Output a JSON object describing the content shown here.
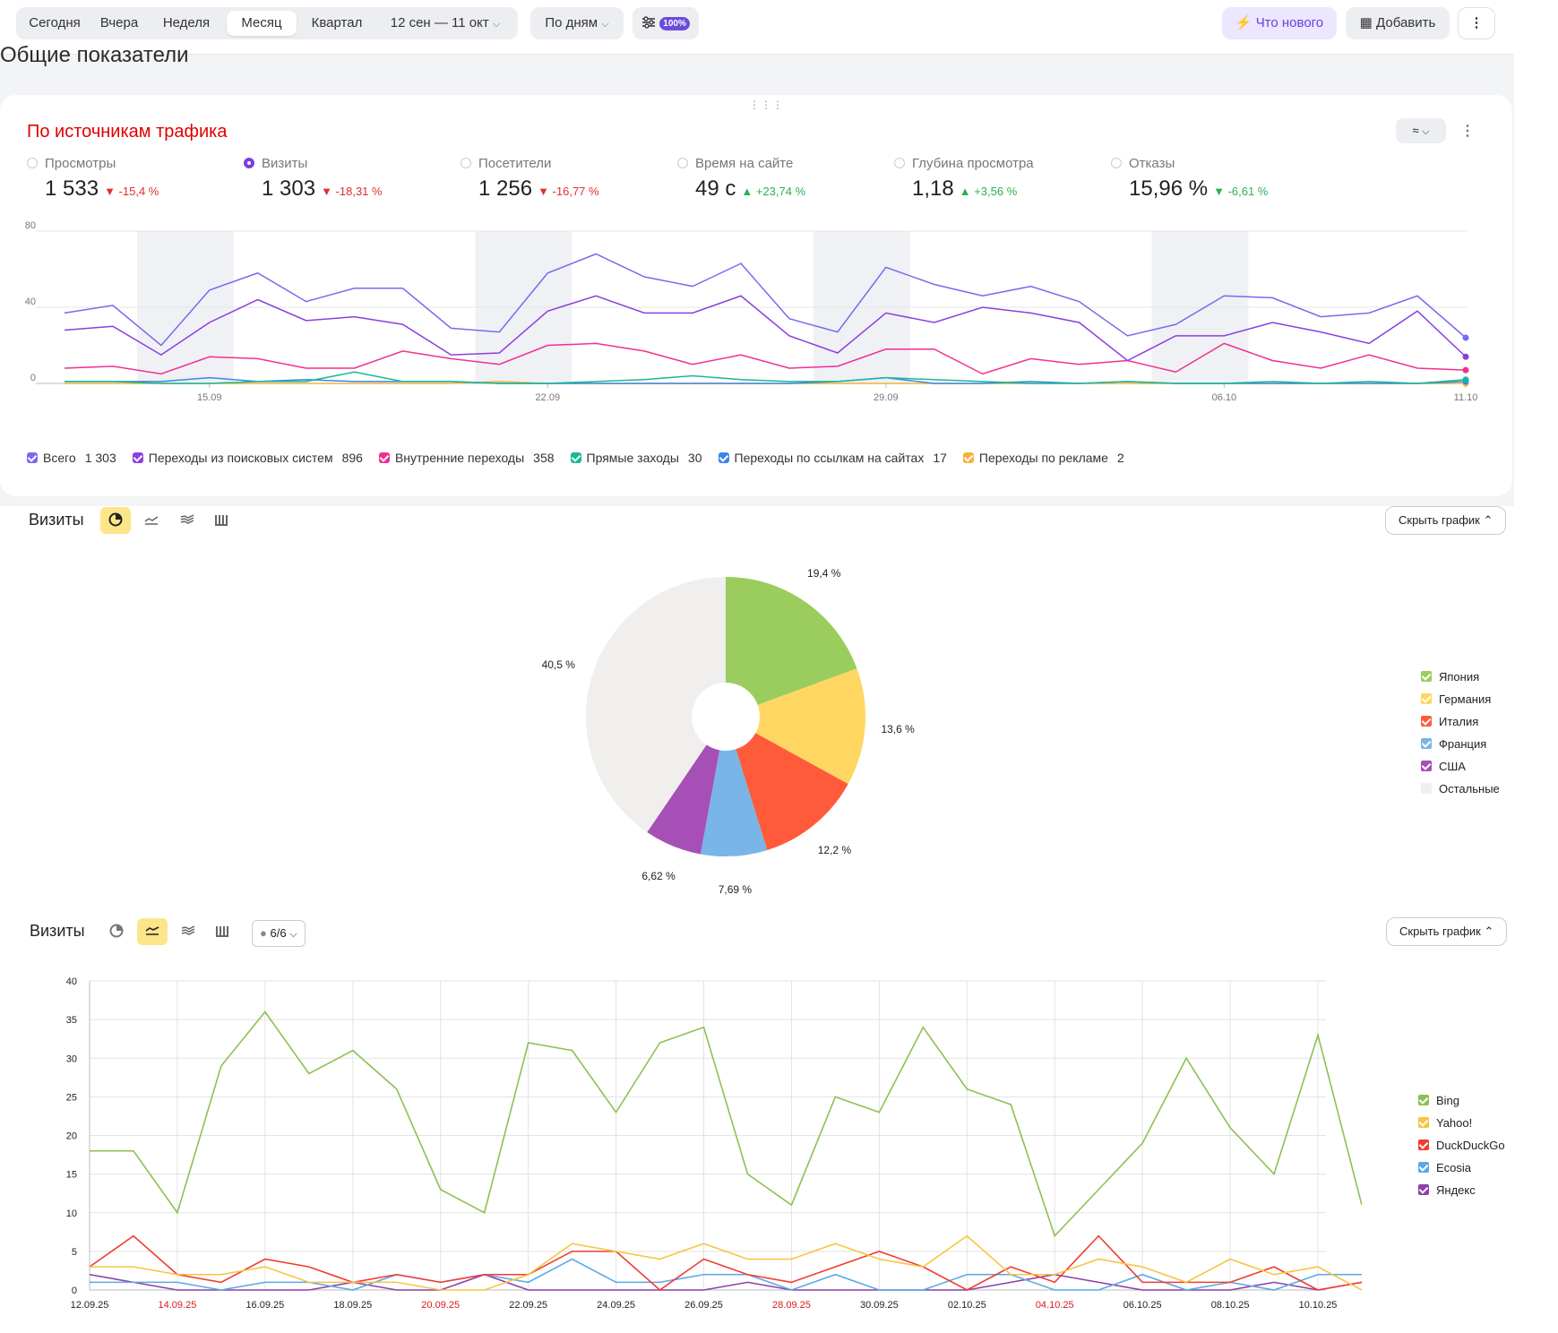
{
  "toolbar": {
    "periods": [
      "Сегодня",
      "Вчера",
      "Неделя",
      "Месяц",
      "Квартал"
    ],
    "active_period": "Месяц",
    "date_range": "12 сен — 11 окт",
    "grouping": "По дням",
    "sample_badge": "100%",
    "whats_new": "Что нового",
    "add": "Добавить"
  },
  "section_title": "Общие показатели",
  "traffic_card": {
    "title": "По источникам трафика",
    "metrics": [
      {
        "label": "Просмотры",
        "value": "1 533",
        "delta": "-15,4 %",
        "trend": "down",
        "selected": false
      },
      {
        "label": "Визиты",
        "value": "1 303",
        "delta": "-18,31 %",
        "trend": "down",
        "selected": true
      },
      {
        "label": "Посетители",
        "value": "1 256",
        "delta": "-16,77 %",
        "trend": "down",
        "selected": false
      },
      {
        "label": "Время на сайте",
        "value": "49 с",
        "delta": "+23,74 %",
        "trend": "up",
        "selected": false
      },
      {
        "label": "Глубина просмотра",
        "value": "1,18",
        "delta": "+3,56 %",
        "trend": "up",
        "selected": false
      },
      {
        "label": "Отказы",
        "value": "15,96 %",
        "delta": "-6,61 %",
        "trend": "down",
        "selected": false
      }
    ],
    "legend": [
      {
        "name": "Всего",
        "value": "1 303",
        "color": "#7b68ee"
      },
      {
        "name": "Переходы из поисковых систем",
        "value": "896",
        "color": "#8a3fe0"
      },
      {
        "name": "Внутренние переходы",
        "value": "358",
        "color": "#f0308f"
      },
      {
        "name": "Прямые заходы",
        "value": "30",
        "color": "#17b897"
      },
      {
        "name": "Переходы по ссылкам на сайтах",
        "value": "17",
        "color": "#3a86e8"
      },
      {
        "name": "Переходы по рекламе",
        "value": "2",
        "color": "#f5b13a"
      }
    ]
  },
  "pie_block": {
    "title": "Визиты",
    "hide_label": "Скрыть график"
  },
  "line_block": {
    "title": "Визиты",
    "series_counter": "6/6",
    "hide_label": "Скрыть график"
  },
  "chart_data": [
    {
      "type": "line",
      "ylim": [
        0,
        80
      ],
      "yticks": [
        "0",
        "40",
        "80"
      ],
      "xticks": [
        "15.09",
        "22.09",
        "29.09",
        "06.10",
        "11.10"
      ],
      "weekend_bands": [
        [
          2,
          3
        ],
        [
          9,
          10
        ],
        [
          16,
          17
        ],
        [
          23,
          24
        ],
        [
          30
        ]
      ],
      "x": [
        "12.09",
        "13.09",
        "14.09",
        "15.09",
        "16.09",
        "17.09",
        "18.09",
        "19.09",
        "20.09",
        "21.09",
        "22.09",
        "23.09",
        "24.09",
        "25.09",
        "26.09",
        "27.09",
        "28.09",
        "29.09",
        "30.09",
        "01.10",
        "02.10",
        "03.10",
        "04.10",
        "05.10",
        "06.10",
        "07.10",
        "08.10",
        "09.10",
        "10.10",
        "11.10"
      ],
      "series": [
        {
          "name": "Всего",
          "color": "#7b68ee",
          "values": [
            37,
            41,
            20,
            49,
            58,
            43,
            50,
            50,
            29,
            27,
            58,
            68,
            56,
            51,
            63,
            34,
            27,
            61,
            52,
            46,
            51,
            43,
            25,
            31,
            46,
            45,
            35,
            37,
            46,
            24
          ]
        },
        {
          "name": "Переходы из поисковых систем",
          "color": "#8a3fe0",
          "values": [
            28,
            30,
            15,
            32,
            44,
            33,
            35,
            31,
            15,
            16,
            38,
            46,
            37,
            37,
            46,
            25,
            16,
            37,
            32,
            40,
            37,
            32,
            12,
            25,
            25,
            32,
            27,
            21,
            38,
            14
          ]
        },
        {
          "name": "Внутренние переходы",
          "color": "#f0308f",
          "values": [
            8,
            9,
            5,
            14,
            13,
            8,
            8,
            17,
            13,
            10,
            20,
            21,
            17,
            10,
            15,
            8,
            9,
            18,
            18,
            5,
            13,
            10,
            12,
            6,
            21,
            12,
            8,
            15,
            8,
            7
          ]
        },
        {
          "name": "Прямые заходы",
          "color": "#17b897",
          "values": [
            1,
            1,
            0,
            0,
            1,
            1,
            6,
            1,
            1,
            0,
            0,
            1,
            2,
            4,
            2,
            1,
            1,
            3,
            2,
            1,
            0,
            0,
            1,
            0,
            0,
            1,
            0,
            1,
            0,
            2
          ]
        },
        {
          "name": "Переходы по ссылкам на сайтах",
          "color": "#3a86e8",
          "values": [
            1,
            1,
            1,
            3,
            1,
            2,
            1,
            1,
            1,
            0,
            0,
            0,
            0,
            0,
            0,
            0,
            1,
            3,
            0,
            0,
            1,
            0,
            1,
            0,
            0,
            0,
            0,
            0,
            0,
            1
          ]
        },
        {
          "name": "Переходы по рекламе",
          "color": "#f5b13a",
          "values": [
            0,
            0,
            0,
            0,
            0,
            0,
            0,
            0,
            0,
            1,
            0,
            0,
            0,
            0,
            0,
            0,
            0,
            0,
            0,
            0,
            0,
            0,
            0,
            0,
            0,
            0,
            0,
            0,
            0,
            0
          ]
        }
      ]
    },
    {
      "type": "pie",
      "slices": [
        {
          "name": "Япония",
          "value": 19.4,
          "label": "19,4 %",
          "color": "#9acd5e"
        },
        {
          "name": "Германия",
          "value": 13.6,
          "label": "13,6 %",
          "color": "#ffd661"
        },
        {
          "name": "Италия",
          "value": 12.2,
          "label": "12,2 %",
          "color": "#ff5b3b"
        },
        {
          "name": "Франция",
          "value": 7.69,
          "label": "7,69 %",
          "color": "#79b5e6"
        },
        {
          "name": "США",
          "value": 6.62,
          "label": "6,62 %",
          "color": "#a64fb6"
        },
        {
          "name": "Остальные",
          "value": 40.5,
          "label": "40,5 %",
          "color": "#f0efed"
        }
      ]
    },
    {
      "type": "line",
      "ylim": [
        0,
        40
      ],
      "yticks": [
        "0",
        "5",
        "10",
        "15",
        "20",
        "25",
        "30",
        "35",
        "40"
      ],
      "x": [
        "12.09.25",
        "13.09.25",
        "14.09.25",
        "15.09.25",
        "16.09.25",
        "17.09.25",
        "18.09.25",
        "19.09.25",
        "20.09.25",
        "21.09.25",
        "22.09.25",
        "23.09.25",
        "24.09.25",
        "25.09.25",
        "26.09.25",
        "27.09.25",
        "28.09.25",
        "29.09.25",
        "30.09.25",
        "01.10.25",
        "02.10.25",
        "03.10.25",
        "04.10.25",
        "05.10.25",
        "06.10.25",
        "07.10.25",
        "08.10.25",
        "09.10.25",
        "10.10.25",
        "11.10.25"
      ],
      "xtick_labels": [
        {
          "i": 0,
          "t": "12.09.25",
          "red": false
        },
        {
          "i": 2,
          "t": "14.09.25",
          "red": true
        },
        {
          "i": 4,
          "t": "16.09.25",
          "red": false
        },
        {
          "i": 6,
          "t": "18.09.25",
          "red": false
        },
        {
          "i": 8,
          "t": "20.09.25",
          "red": true
        },
        {
          "i": 10,
          "t": "22.09.25",
          "red": false
        },
        {
          "i": 12,
          "t": "24.09.25",
          "red": false
        },
        {
          "i": 14,
          "t": "26.09.25",
          "red": false
        },
        {
          "i": 16,
          "t": "28.09.25",
          "red": true
        },
        {
          "i": 18,
          "t": "30.09.25",
          "red": false
        },
        {
          "i": 20,
          "t": "02.10.25",
          "red": false
        },
        {
          "i": 22,
          "t": "04.10.25",
          "red": true
        },
        {
          "i": 24,
          "t": "06.10.25",
          "red": false
        },
        {
          "i": 26,
          "t": "08.10.25",
          "red": false
        },
        {
          "i": 28,
          "t": "10.10.25",
          "red": false
        }
      ],
      "series": [
        {
          "name": "Bing",
          "color": "#8cc152",
          "values": [
            18,
            18,
            10,
            29,
            36,
            28,
            31,
            26,
            13,
            10,
            32,
            31,
            23,
            32,
            34,
            15,
            11,
            25,
            23,
            34,
            26,
            24,
            7,
            13,
            19,
            30,
            21,
            15,
            33,
            11
          ]
        },
        {
          "name": "Yahoo!",
          "color": "#f5c542",
          "values": [
            3,
            3,
            2,
            2,
            3,
            1,
            1,
            1,
            0,
            0,
            2,
            6,
            5,
            4,
            6,
            4,
            4,
            6,
            4,
            3,
            7,
            2,
            2,
            4,
            3,
            1,
            4,
            2,
            3,
            0
          ]
        },
        {
          "name": "DuckDuckGo",
          "color": "#f03c2e",
          "values": [
            3,
            7,
            2,
            1,
            4,
            3,
            1,
            2,
            1,
            2,
            2,
            5,
            5,
            0,
            4,
            2,
            1,
            3,
            5,
            3,
            0,
            3,
            1,
            7,
            1,
            1,
            1,
            3,
            0,
            1
          ]
        },
        {
          "name": "Ecosia",
          "color": "#5aa9e6",
          "values": [
            1,
            1,
            1,
            0,
            1,
            1,
            0,
            2,
            1,
            2,
            1,
            4,
            1,
            1,
            2,
            2,
            0,
            2,
            0,
            0,
            2,
            2,
            0,
            0,
            2,
            0,
            1,
            0,
            2,
            2
          ]
        },
        {
          "name": "Яндекс",
          "color": "#8e3fa8",
          "values": [
            2,
            1,
            0,
            0,
            0,
            0,
            1,
            0,
            0,
            2,
            0,
            0,
            0,
            0,
            0,
            1,
            0,
            0,
            0,
            0,
            0,
            1,
            2,
            1,
            0,
            0,
            0,
            1,
            0,
            1
          ]
        }
      ]
    }
  ]
}
